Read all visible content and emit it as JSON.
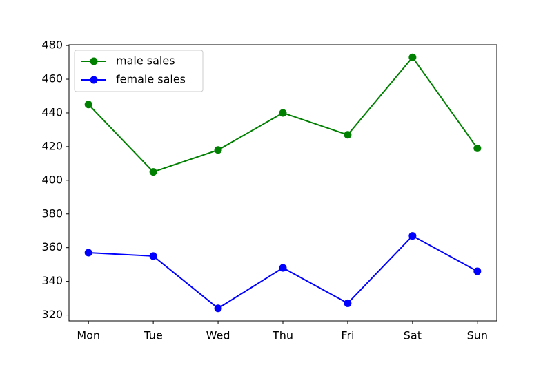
{
  "chart_data": {
    "type": "line",
    "categories": [
      "Mon",
      "Tue",
      "Wed",
      "Thu",
      "Fri",
      "Sat",
      "Sun"
    ],
    "series": [
      {
        "name": "male sales",
        "color": "green",
        "values": [
          445,
          405,
          418,
          440,
          427,
          473,
          419
        ]
      },
      {
        "name": "female sales",
        "color": "blue",
        "values": [
          357,
          355,
          324,
          348,
          327,
          367,
          346
        ]
      }
    ],
    "ylim": [
      316.55,
      480.45
    ],
    "yticks": [
      320,
      340,
      360,
      380,
      400,
      420,
      440,
      460,
      480
    ],
    "grid": false,
    "legend": "upper left"
  }
}
